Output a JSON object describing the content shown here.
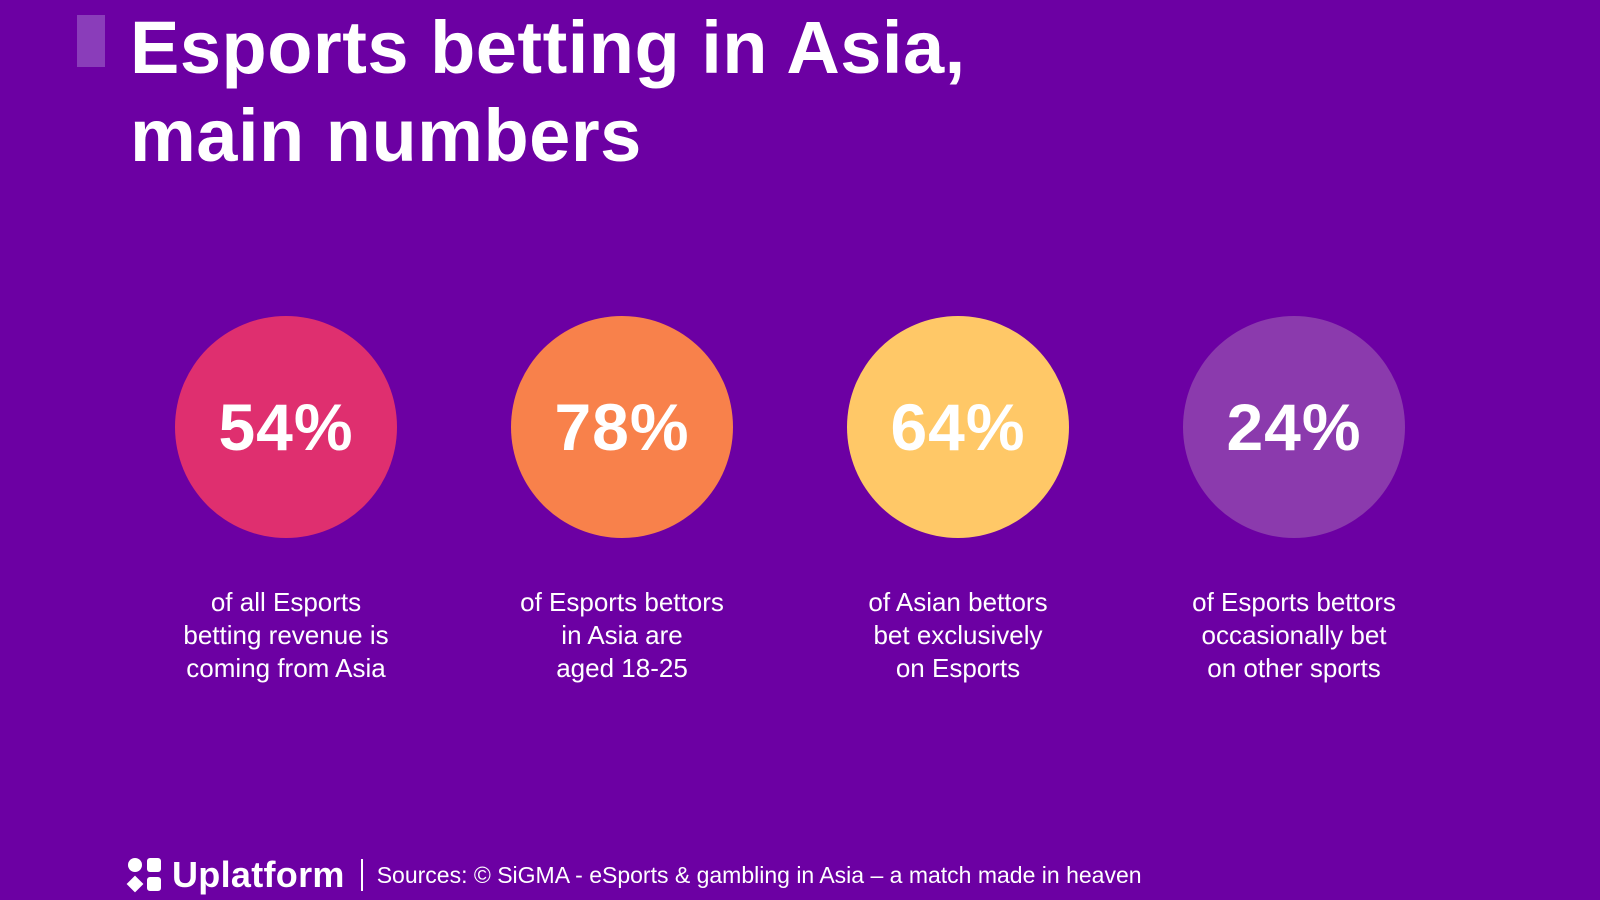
{
  "header": {
    "title_line1": "Esports betting in Asia,",
    "title_line2": "main numbers",
    "accent_color": "#8a3dba"
  },
  "colors": {
    "background": "#6c00a3",
    "text": "#ffffff"
  },
  "stats": [
    {
      "value": "54%",
      "color": "#df2f6f",
      "desc_lines": [
        "of all Esports",
        "betting revenue is",
        "coming from Asia"
      ]
    },
    {
      "value": "78%",
      "color": "#f8814b",
      "desc_lines": [
        "of Esports bettors",
        "in Asia are",
        "aged 18-25"
      ]
    },
    {
      "value": "64%",
      "color": "#ffc867",
      "desc_lines": [
        "of Asian bettors",
        "bet exclusively",
        "on Esports"
      ]
    },
    {
      "value": "24%",
      "color": "#8b3aad",
      "desc_lines": [
        "of Esports bettors",
        "occasionally bet",
        "on other sports"
      ]
    }
  ],
  "footer": {
    "logo_icon": "uplatform-logo-icon",
    "brand": "Uplatform",
    "sources": "Sources: © SiGMA - eSports & gambling in Asia – a match made in heaven"
  }
}
